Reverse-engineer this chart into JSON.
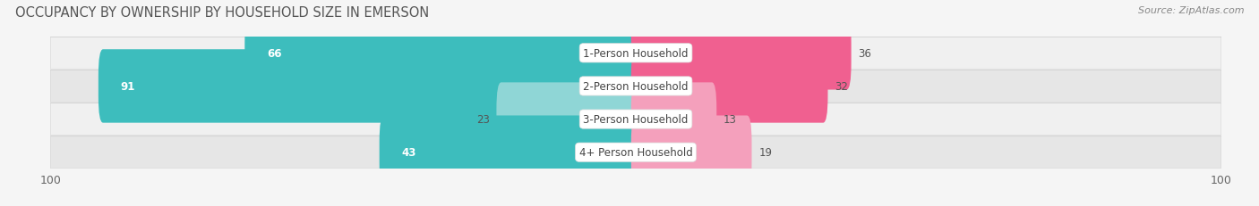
{
  "title": "OCCUPANCY BY OWNERSHIP BY HOUSEHOLD SIZE IN EMERSON",
  "source": "Source: ZipAtlas.com",
  "categories": [
    "1-Person Household",
    "2-Person Household",
    "3-Person Household",
    "4+ Person Household"
  ],
  "owner_values": [
    66,
    91,
    23,
    43
  ],
  "renter_values": [
    36,
    32,
    13,
    19
  ],
  "owner_color_dark": "#3dbdbd",
  "owner_color_light": "#8fd6d6",
  "renter_color_dark": "#f06090",
  "renter_color_light": "#f4a0bc",
  "row_bg_colors": [
    "#efefef",
    "#e4e4e4",
    "#efefef",
    "#e4e4e4"
  ],
  "row_bg_light": "#f8f8f8",
  "max_value": 100,
  "bar_height": 0.62,
  "title_fontsize": 10.5,
  "source_fontsize": 8,
  "tick_fontsize": 9,
  "value_fontsize": 8.5,
  "cat_fontsize": 8.5,
  "bg_color": "#f5f5f5"
}
